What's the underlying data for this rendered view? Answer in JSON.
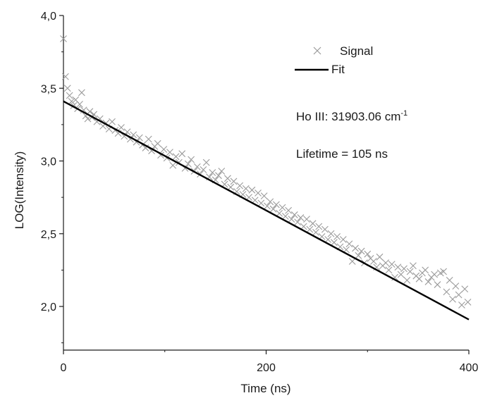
{
  "chart_data": {
    "type": "scatter",
    "xlabel": "Time (ns)",
    "ylabel": "LOG(Intensity)",
    "xlim": [
      0,
      400
    ],
    "ylim": [
      1.7,
      4.0
    ],
    "x_ticks": [
      0,
      200,
      400
    ],
    "x_tick_labels": [
      "0",
      "200",
      "400"
    ],
    "y_ticks": [
      2.0,
      2.5,
      3.0,
      3.5,
      4.0
    ],
    "y_tick_labels": [
      "2,0",
      "2,5",
      "3,0",
      "3,5",
      "4,0"
    ],
    "grid": false,
    "legend_position": "top-right",
    "annotations": {
      "ion": "Ho III: 31903.06 cm",
      "ion_sup": "-1",
      "lifetime": "Lifetime = 105 ns"
    },
    "series": [
      {
        "name": "Signal",
        "marker": "x",
        "color": "#9a9a9a",
        "x": [
          0,
          2,
          4,
          6,
          8,
          10,
          12,
          14,
          16,
          18,
          20,
          22,
          24,
          26,
          28,
          30,
          33,
          36,
          39,
          42,
          45,
          48,
          51,
          54,
          57,
          60,
          63,
          66,
          69,
          72,
          75,
          78,
          81,
          84,
          87,
          90,
          93,
          96,
          99,
          102,
          105,
          108,
          111,
          114,
          117,
          120,
          123,
          126,
          129,
          132,
          135,
          138,
          141,
          144,
          147,
          150,
          153,
          156,
          159,
          162,
          165,
          168,
          171,
          174,
          177,
          180,
          183,
          186,
          189,
          192,
          195,
          198,
          201,
          204,
          207,
          210,
          213,
          216,
          219,
          222,
          225,
          228,
          231,
          234,
          237,
          240,
          243,
          246,
          249,
          252,
          255,
          258,
          261,
          264,
          267,
          270,
          273,
          276,
          279,
          282,
          285,
          288,
          291,
          294,
          297,
          300,
          303,
          306,
          309,
          312,
          315,
          318,
          321,
          324,
          327,
          330,
          333,
          336,
          339,
          342,
          345,
          348,
          351,
          354,
          357,
          360,
          363,
          366,
          369,
          372,
          375,
          378,
          381,
          384,
          387,
          390,
          393,
          396,
          399
        ],
        "y": [
          3.84,
          3.58,
          3.5,
          3.45,
          3.41,
          3.38,
          3.42,
          3.36,
          3.39,
          3.47,
          3.35,
          3.31,
          3.29,
          3.34,
          3.3,
          3.32,
          3.27,
          3.29,
          3.24,
          3.26,
          3.22,
          3.27,
          3.21,
          3.19,
          3.23,
          3.17,
          3.2,
          3.15,
          3.18,
          3.13,
          3.16,
          3.11,
          3.09,
          3.15,
          3.07,
          3.1,
          3.12,
          3.04,
          3.08,
          3.02,
          3.06,
          2.97,
          3.03,
          2.99,
          3.05,
          2.95,
          2.98,
          3.01,
          2.93,
          2.96,
          2.91,
          2.94,
          2.99,
          2.89,
          2.92,
          2.87,
          2.9,
          2.93,
          2.84,
          2.88,
          2.82,
          2.86,
          2.79,
          2.83,
          2.77,
          2.81,
          2.75,
          2.8,
          2.73,
          2.78,
          2.71,
          2.76,
          2.69,
          2.72,
          2.67,
          2.7,
          2.64,
          2.68,
          2.62,
          2.66,
          2.6,
          2.63,
          2.58,
          2.61,
          2.55,
          2.6,
          2.53,
          2.57,
          2.51,
          2.55,
          2.48,
          2.53,
          2.46,
          2.5,
          2.44,
          2.48,
          2.41,
          2.46,
          2.39,
          2.43,
          2.31,
          2.4,
          2.35,
          2.38,
          2.3,
          2.36,
          2.33,
          2.31,
          2.27,
          2.34,
          2.28,
          2.3,
          2.25,
          2.29,
          2.2,
          2.27,
          2.22,
          2.26,
          2.18,
          2.24,
          2.28,
          2.21,
          2.19,
          2.23,
          2.25,
          2.17,
          2.2,
          2.22,
          2.15,
          2.23,
          2.24,
          2.1,
          2.18,
          2.05,
          2.14,
          2.08,
          2.01,
          2.12,
          2.03
        ]
      },
      {
        "name": "Fit",
        "marker": "line",
        "color": "#000000",
        "x": [
          0,
          400
        ],
        "y": [
          3.41,
          1.91
        ]
      }
    ]
  }
}
